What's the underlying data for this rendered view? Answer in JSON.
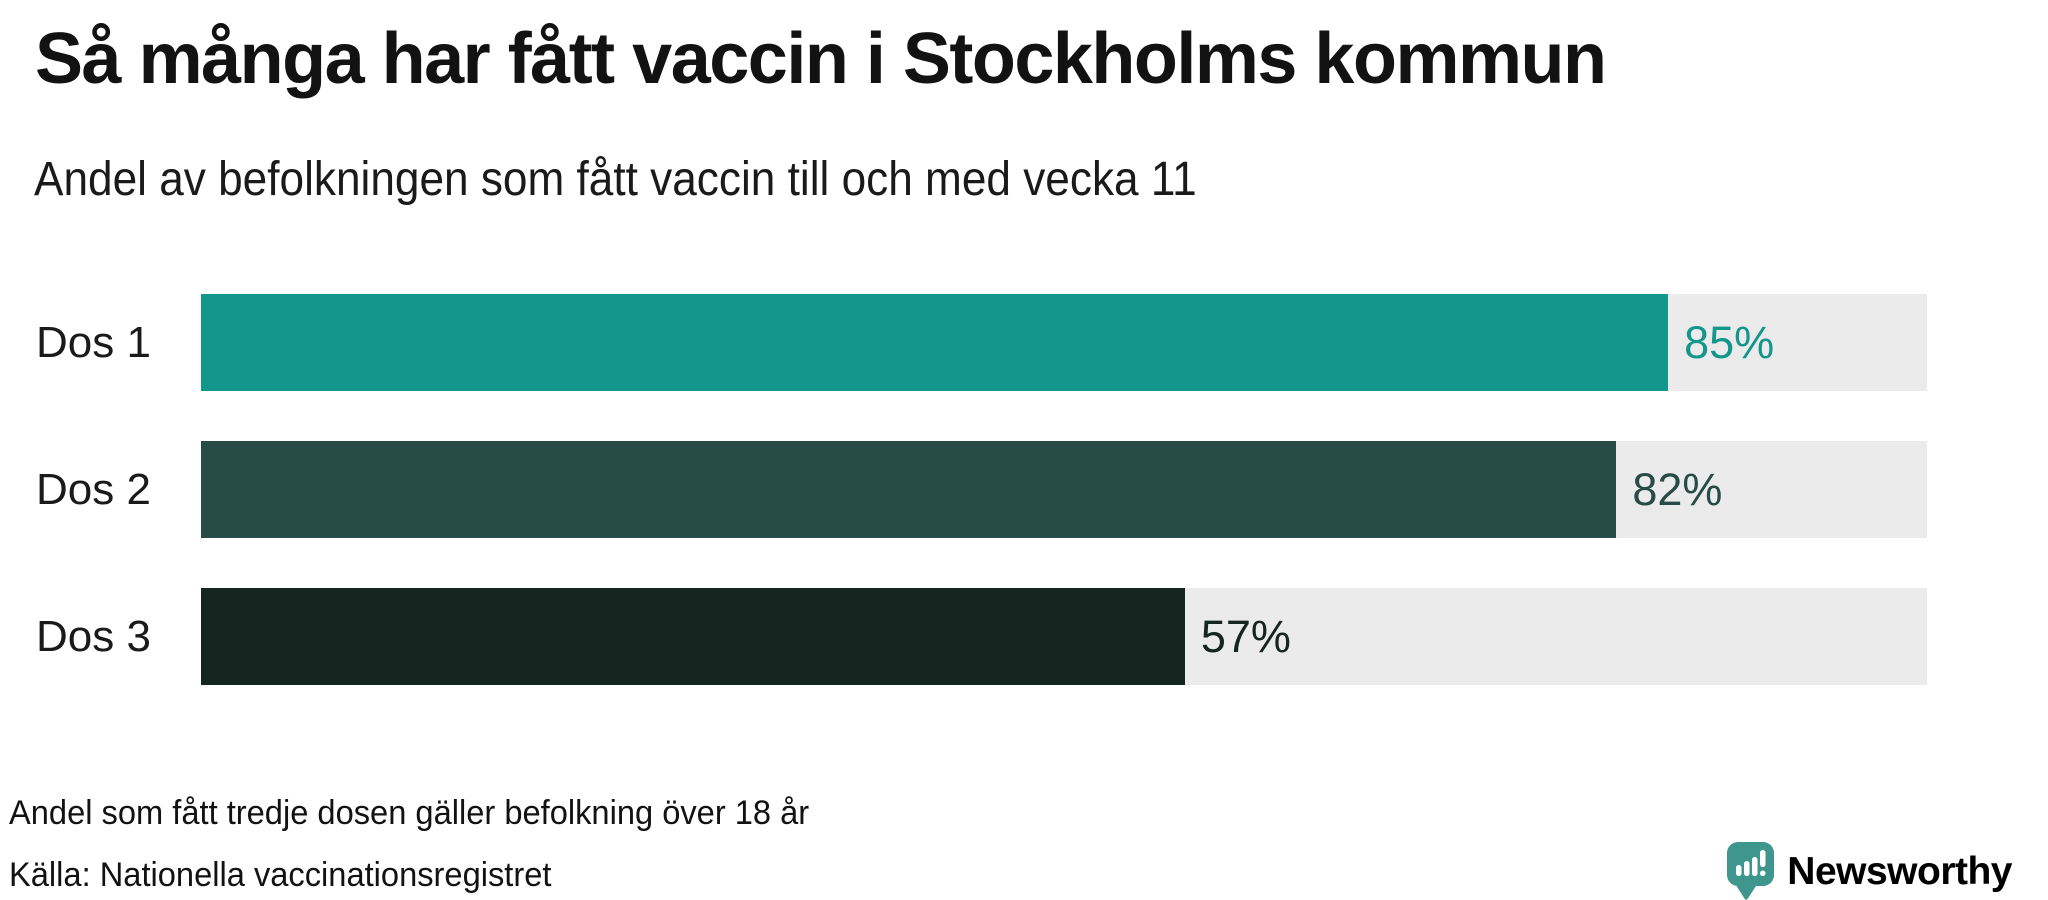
{
  "chart_data": {
    "type": "bar",
    "orientation": "horizontal",
    "title": "Så många har fått vaccin i Stockholms kommun",
    "subtitle": "Andel av befolkningen som fått vaccin till och med vecka 11",
    "categories": [
      "Dos 1",
      "Dos 2",
      "Dos 3"
    ],
    "values": [
      85,
      82,
      57
    ],
    "value_labels": [
      "85%",
      "82%",
      "57%"
    ],
    "unit": "%",
    "xlim": [
      0,
      100
    ],
    "bar_colors": [
      "#13968b",
      "#274c45",
      "#152621"
    ],
    "track_color": "#ebebeb",
    "grid": false,
    "legend": "none"
  },
  "footer": {
    "note": "Andel som fått tredje dosen gäller befolkning över 18 år",
    "source": "Källa: Nationella vaccinationsregistret"
  },
  "logo": {
    "label": "Newsworthy",
    "icon": "newsworthy-speech-bubble-chart-icon",
    "color": "#3a948b"
  }
}
